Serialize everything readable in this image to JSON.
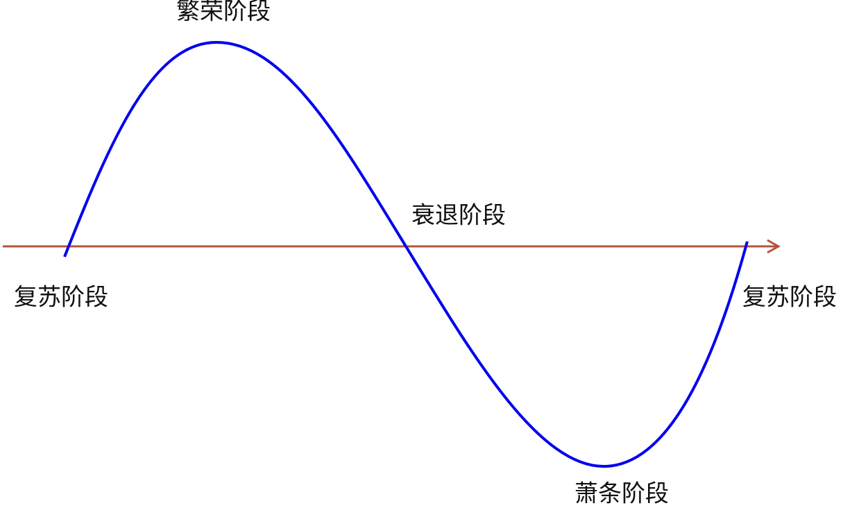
{
  "stages": [
    {
      "label": "复苏阶段"
    },
    {
      "label": "繁荣阶段"
    },
    {
      "label": "衰退阶段"
    },
    {
      "label": "萧条阶段"
    },
    {
      "label": "复苏阶段"
    }
  ]
}
